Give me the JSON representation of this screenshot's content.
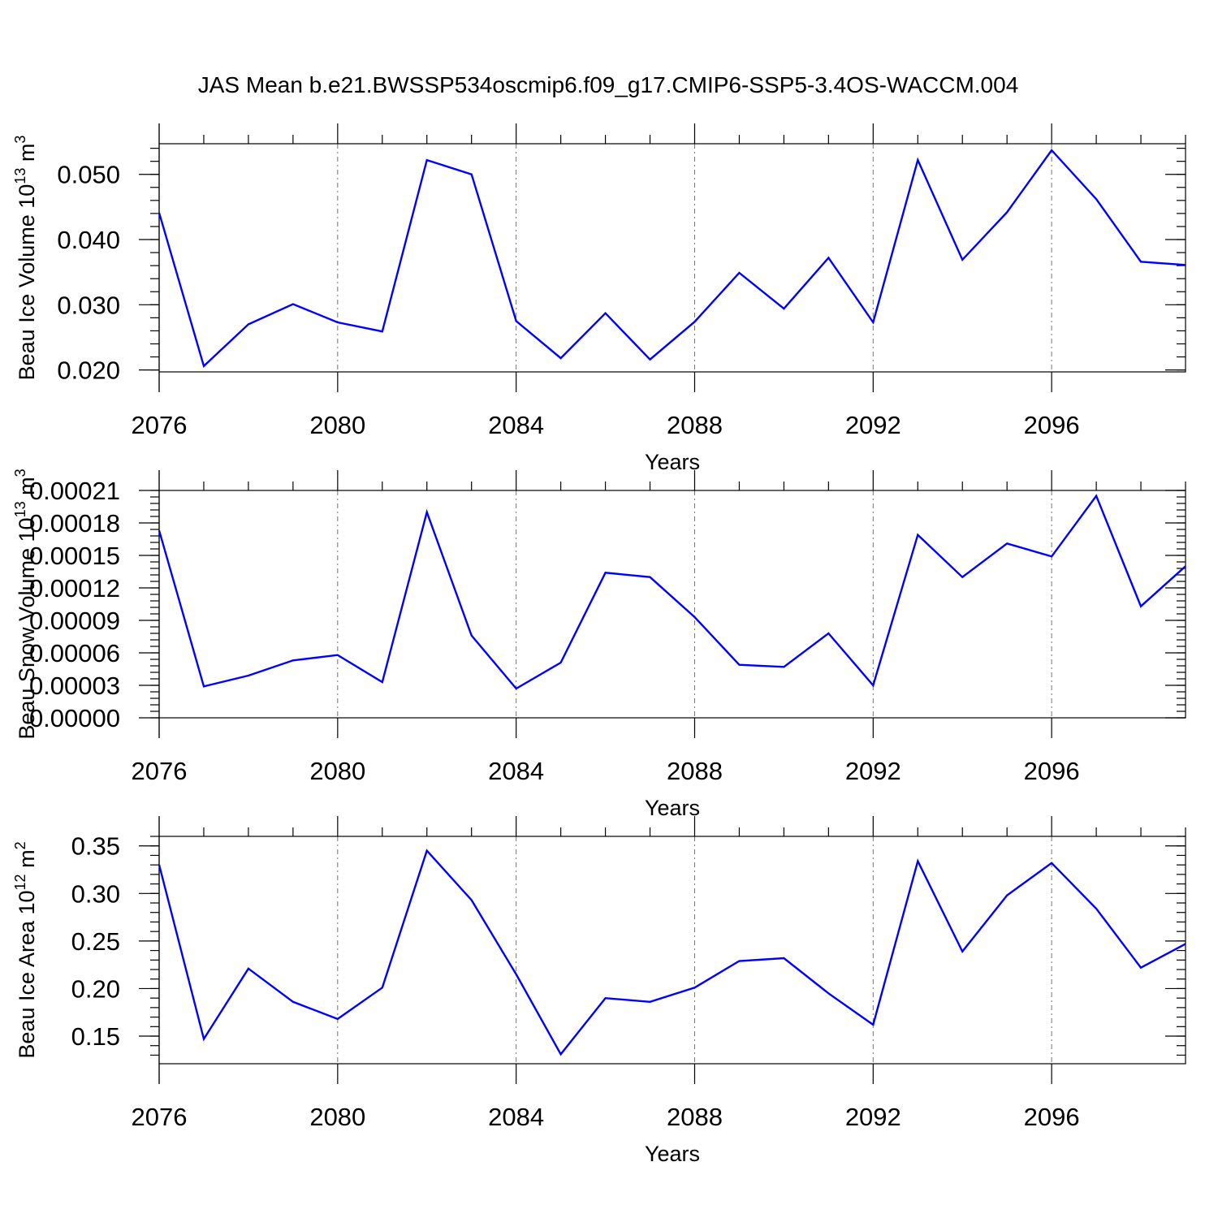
{
  "title": "JAS Mean b.e21.BWSSP534oscmip6.f09_g17.CMIP6-SSP5-3.4OS-WACCM.004",
  "colors": {
    "series": "#0000ff",
    "axis": "#000000"
  },
  "chart_data": [
    {
      "type": "line",
      "xlabel": "Years",
      "ylabel": {
        "text": "Beau Ice Volume 10",
        "sup": "13",
        "unit": " m",
        "unit_sup": "3"
      },
      "x": [
        2076,
        2077,
        2078,
        2079,
        2080,
        2081,
        2082,
        2083,
        2084,
        2085,
        2086,
        2087,
        2088,
        2089,
        2090,
        2091,
        2092,
        2093,
        2094,
        2095,
        2096,
        2097,
        2098,
        2099
      ],
      "values": [
        0.0441,
        0.0206,
        0.027,
        0.0301,
        0.0273,
        0.0259,
        0.0522,
        0.05,
        0.0275,
        0.0218,
        0.0287,
        0.0216,
        0.0274,
        0.0349,
        0.0294,
        0.0372,
        0.0273,
        0.0522,
        0.0369,
        0.0442,
        0.0537,
        0.0462,
        0.0366,
        0.0361
      ],
      "xlim": [
        2076,
        2099
      ],
      "ylim": [
        0.0197,
        0.0547
      ],
      "xticks": [
        "2076",
        "2080",
        "2084",
        "2088",
        "2092",
        "2096"
      ],
      "yticks": [
        "0.020",
        "0.030",
        "0.040",
        "0.050"
      ],
      "grid": "vertical dashed at major x ticks",
      "legend": "none"
    },
    {
      "type": "line",
      "xlabel": "Years",
      "ylabel": {
        "text": "Beau Snow Volume 10",
        "sup": "13",
        "unit": " m",
        "unit_sup": "3"
      },
      "x": [
        2076,
        2077,
        2078,
        2079,
        2080,
        2081,
        2082,
        2083,
        2084,
        2085,
        2086,
        2087,
        2088,
        2089,
        2090,
        2091,
        2092,
        2093,
        2094,
        2095,
        2096,
        2097,
        2098,
        2099
      ],
      "values": [
        0.000173,
        2.9e-05,
        3.9e-05,
        5.3e-05,
        5.8e-05,
        3.3e-05,
        0.00019,
        7.6e-05,
        2.7e-05,
        5.1e-05,
        0.000134,
        0.00013,
        9.3e-05,
        4.9e-05,
        4.7e-05,
        7.8e-05,
        3e-05,
        0.000169,
        0.00013,
        0.000161,
        0.000149,
        0.000205,
        0.000103,
        0.00014
      ],
      "xlim": [
        2076,
        2099
      ],
      "ylim": [
        0.0,
        0.00021
      ],
      "xticks": [
        "2076",
        "2080",
        "2084",
        "2088",
        "2092",
        "2096"
      ],
      "yticks": [
        "0.00000",
        "0.00003",
        "0.00006",
        "0.00009",
        "0.00012",
        "0.00015",
        "0.00018",
        "0.00021"
      ],
      "grid": "vertical dashed at major x ticks",
      "legend": "none"
    },
    {
      "type": "line",
      "xlabel": "Years",
      "ylabel": {
        "text": "Beau Ice Area 10",
        "sup": "12",
        "unit": " m",
        "unit_sup": "2"
      },
      "x": [
        2076,
        2077,
        2078,
        2079,
        2080,
        2081,
        2082,
        2083,
        2084,
        2085,
        2086,
        2087,
        2088,
        2089,
        2090,
        2091,
        2092,
        2093,
        2094,
        2095,
        2096,
        2097,
        2098,
        2099
      ],
      "values": [
        0.33,
        0.147,
        0.221,
        0.186,
        0.168,
        0.201,
        0.345,
        0.293,
        0.215,
        0.131,
        0.19,
        0.186,
        0.201,
        0.229,
        0.232,
        0.195,
        0.162,
        0.334,
        0.239,
        0.298,
        0.332,
        0.284,
        0.222,
        0.247
      ],
      "xlim": [
        2076,
        2099
      ],
      "ylim": [
        0.121,
        0.36
      ],
      "xticks": [
        "2076",
        "2080",
        "2084",
        "2088",
        "2092",
        "2096"
      ],
      "yticks": [
        "0.15",
        "0.20",
        "0.25",
        "0.30",
        "0.35"
      ],
      "grid": "vertical dashed at major x ticks",
      "legend": "none"
    }
  ]
}
